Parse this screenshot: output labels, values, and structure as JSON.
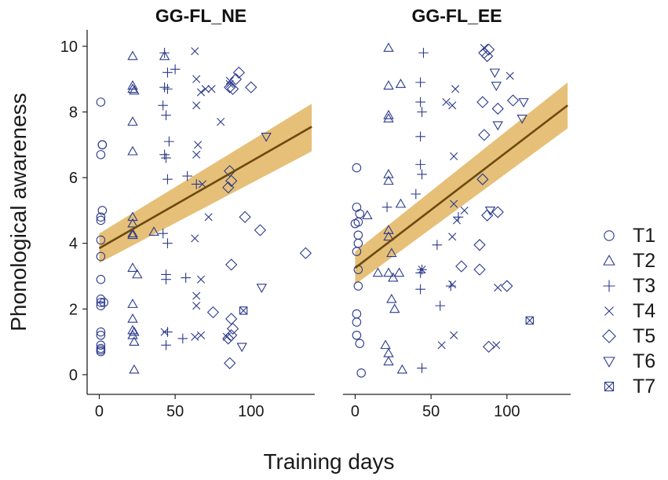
{
  "colors": {
    "marker": "#2b3a8c",
    "band": "#e2b560",
    "line": "#6b4a0e",
    "axis": "#222222",
    "background": "#ffffff"
  },
  "chart_data": {
    "type": "scatter",
    "xlabel": "Training days",
    "ylabel": "Phonological awareness",
    "xlim": [
      -8,
      142
    ],
    "ylim": [
      -0.6,
      10.5
    ],
    "xticks": [
      0,
      50,
      100
    ],
    "yticks": [
      0,
      2,
      4,
      6,
      8,
      10
    ],
    "legend": {
      "placement": "right",
      "entries": [
        {
          "label": "T1",
          "marker": "circle"
        },
        {
          "label": "T2",
          "marker": "triangle-up"
        },
        {
          "label": "T3",
          "marker": "plus"
        },
        {
          "label": "T4",
          "marker": "cross"
        },
        {
          "label": "T5",
          "marker": "diamond"
        },
        {
          "label": "T6",
          "marker": "triangle-down"
        },
        {
          "label": "T7",
          "marker": "boxed-cross"
        }
      ]
    },
    "panels": [
      {
        "title": "GG-FL_NE",
        "fit": {
          "x": [
            0,
            140
          ],
          "y": [
            3.85,
            7.55
          ],
          "ci_low": [
            3.4,
            6.8
          ],
          "ci_high": [
            4.3,
            8.25
          ]
        },
        "series": [
          {
            "name": "T1",
            "points": [
              [
                1,
                8.3
              ],
              [
                2,
                7.0
              ],
              [
                2,
                7.0
              ],
              [
                1,
                6.7
              ],
              [
                2,
                5.0
              ],
              [
                1,
                4.8
              ],
              [
                1,
                4.7
              ],
              [
                1,
                4.1
              ],
              [
                1,
                3.6
              ],
              [
                1,
                2.9
              ],
              [
                1,
                2.3
              ],
              [
                1,
                2.2
              ],
              [
                1,
                2.1
              ],
              [
                3,
                2.2
              ],
              [
                1,
                1.3
              ],
              [
                1,
                1.2
              ],
              [
                1,
                0.9
              ],
              [
                1,
                0.8
              ],
              [
                1,
                0.7
              ],
              [
                1,
                0.75
              ]
            ]
          },
          {
            "name": "T2",
            "points": [
              [
                22,
                9.7
              ],
              [
                43,
                9.7
              ],
              [
                22,
                8.8
              ],
              [
                22,
                8.7
              ],
              [
                23,
                8.65
              ],
              [
                22,
                7.7
              ],
              [
                22,
                6.8
              ],
              [
                22,
                4.8
              ],
              [
                22,
                4.6
              ],
              [
                22,
                4.3
              ],
              [
                22,
                4.25
              ],
              [
                36,
                4.35
              ],
              [
                22,
                3.25
              ],
              [
                25,
                3.05
              ],
              [
                22,
                2.15
              ],
              [
                22,
                1.7
              ],
              [
                22,
                1.35
              ],
              [
                23,
                1.3
              ],
              [
                22,
                1.2
              ],
              [
                23,
                1.0
              ],
              [
                23,
                0.15
              ]
            ]
          },
          {
            "name": "T3",
            "points": [
              [
                43,
                9.8
              ],
              [
                45,
                9.2
              ],
              [
                50,
                9.3
              ],
              [
                43,
                8.75
              ],
              [
                45,
                8.7
              ],
              [
                42,
                8.2
              ],
              [
                44,
                7.9
              ],
              [
                46,
                7.1
              ],
              [
                43,
                6.7
              ],
              [
                44,
                6.6
              ],
              [
                45,
                5.95
              ],
              [
                58,
                6.05
              ],
              [
                64,
                5.8
              ],
              [
                42,
                4.3
              ],
              [
                45,
                4.0
              ],
              [
                44,
                3.05
              ],
              [
                44,
                2.9
              ],
              [
                57,
                2.95
              ],
              [
                45,
                1.3
              ],
              [
                44,
                0.9
              ],
              [
                55,
                1.1
              ]
            ]
          },
          {
            "name": "T4",
            "points": [
              [
                63,
                9.85
              ],
              [
                64,
                9.0
              ],
              [
                70,
                8.7
              ],
              [
                74,
                8.7
              ],
              [
                67,
                8.6
              ],
              [
                64,
                8.2
              ],
              [
                80,
                7.7
              ],
              [
                65,
                7.0
              ],
              [
                64,
                6.7
              ],
              [
                68,
                5.8
              ],
              [
                72,
                4.8
              ],
              [
                63,
                4.15
              ],
              [
                64,
                2.4
              ],
              [
                64,
                2.1
              ],
              [
                67,
                2.9
              ],
              [
                43,
                1.3
              ],
              [
                63,
                1.15
              ],
              [
                67,
                1.2
              ],
              [
                84,
                1.15
              ],
              [
                86,
                8.95
              ],
              [
                86,
                8.85
              ]
            ]
          },
          {
            "name": "T5",
            "points": [
              [
                92,
                9.2
              ],
              [
                90,
                9.0
              ],
              [
                86,
                8.75
              ],
              [
                88,
                8.7
              ],
              [
                100,
                8.75
              ],
              [
                86,
                6.2
              ],
              [
                87,
                5.9
              ],
              [
                85,
                5.7
              ],
              [
                96,
                4.8
              ],
              [
                106,
                4.4
              ],
              [
                136,
                3.7
              ],
              [
                87,
                3.35
              ],
              [
                75,
                1.9
              ],
              [
                87,
                1.7
              ],
              [
                88,
                1.4
              ],
              [
                87,
                1.2
              ],
              [
                85,
                1.1
              ],
              [
                86,
                0.35
              ]
            ]
          },
          {
            "name": "T6",
            "points": [
              [
                110,
                7.25
              ],
              [
                107,
                2.65
              ],
              [
                94,
                0.85
              ]
            ]
          },
          {
            "name": "T7",
            "points": [
              [
                95,
                1.95
              ]
            ]
          }
        ]
      },
      {
        "title": "GG-FL_EE",
        "fit": {
          "x": [
            0,
            140
          ],
          "y": [
            3.25,
            8.2
          ],
          "ci_low": [
            2.75,
            7.5
          ],
          "ci_high": [
            3.75,
            8.9
          ]
        },
        "series": [
          {
            "name": "T1",
            "points": [
              [
                1,
                6.3
              ],
              [
                1,
                5.1
              ],
              [
                3,
                4.9
              ],
              [
                2,
                4.65
              ],
              [
                0,
                4.6
              ],
              [
                2,
                4.25
              ],
              [
                2,
                4.0
              ],
              [
                1,
                3.75
              ],
              [
                2,
                3.2
              ],
              [
                2,
                2.7
              ],
              [
                1,
                1.85
              ],
              [
                1,
                1.6
              ],
              [
                1,
                1.2
              ],
              [
                3,
                0.95
              ],
              [
                4,
                0.05
              ]
            ]
          },
          {
            "name": "T2",
            "points": [
              [
                22,
                9.95
              ],
              [
                22,
                8.8
              ],
              [
                30,
                8.85
              ],
              [
                22,
                7.9
              ],
              [
                22,
                7.8
              ],
              [
                22,
                6.1
              ],
              [
                22,
                5.9
              ],
              [
                30,
                5.2
              ],
              [
                8,
                4.85
              ],
              [
                22,
                4.4
              ],
              [
                22,
                4.2
              ],
              [
                24,
                3.7
              ],
              [
                15,
                3.1
              ],
              [
                25,
                2.95
              ],
              [
                22,
                3.1
              ],
              [
                29,
                3.1
              ],
              [
                24,
                2.3
              ],
              [
                26,
                2.0
              ],
              [
                20,
                0.9
              ],
              [
                22,
                0.65
              ],
              [
                22,
                0.4
              ],
              [
                31,
                0.15
              ]
            ]
          },
          {
            "name": "T3",
            "points": [
              [
                45,
                9.8
              ],
              [
                43,
                8.9
              ],
              [
                43,
                8.3
              ],
              [
                44,
                8.0
              ],
              [
                43,
                7.25
              ],
              [
                43,
                6.4
              ],
              [
                44,
                6.1
              ],
              [
                40,
                5.5
              ],
              [
                21,
                5.1
              ],
              [
                54,
                3.95
              ],
              [
                44,
                3.2
              ],
              [
                43,
                3.1
              ],
              [
                43,
                2.6
              ],
              [
                56,
                2.1
              ],
              [
                44,
                0.2
              ],
              [
                63,
                2.7
              ],
              [
                68,
                4.8
              ]
            ]
          },
          {
            "name": "T4",
            "points": [
              [
                85,
                9.95
              ],
              [
                60,
                8.3
              ],
              [
                66,
                8.7
              ],
              [
                64,
                8.2
              ],
              [
                102,
                9.1
              ],
              [
                65,
                6.65
              ],
              [
                72,
                5.0
              ],
              [
                67,
                4.7
              ],
              [
                64,
                4.2
              ],
              [
                65,
                5.2
              ],
              [
                64,
                2.75
              ],
              [
                44,
                3.2
              ],
              [
                57,
                0.9
              ],
              [
                65,
                1.2
              ],
              [
                93,
                0.9
              ],
              [
                94,
                2.65
              ]
            ]
          },
          {
            "name": "T5",
            "points": [
              [
                85,
                9.8
              ],
              [
                88,
                9.9
              ],
              [
                87,
                9.7
              ],
              [
                104,
                8.35
              ],
              [
                84,
                8.3
              ],
              [
                94,
                8.1
              ],
              [
                85,
                7.3
              ],
              [
                84,
                5.95
              ],
              [
                87,
                4.85
              ],
              [
                94,
                4.95
              ],
              [
                82,
                3.95
              ],
              [
                70,
                3.3
              ],
              [
                82,
                3.2
              ],
              [
                100,
                2.7
              ],
              [
                88,
                0.85
              ]
            ]
          },
          {
            "name": "T6",
            "points": [
              [
                92,
                9.2
              ],
              [
                93,
                8.8
              ],
              [
                111,
                8.3
              ],
              [
                94,
                7.6
              ],
              [
                110,
                7.8
              ],
              [
                89,
                5.0
              ]
            ]
          },
          {
            "name": "T7",
            "points": [
              [
                115,
                1.65
              ]
            ]
          }
        ]
      }
    ]
  }
}
